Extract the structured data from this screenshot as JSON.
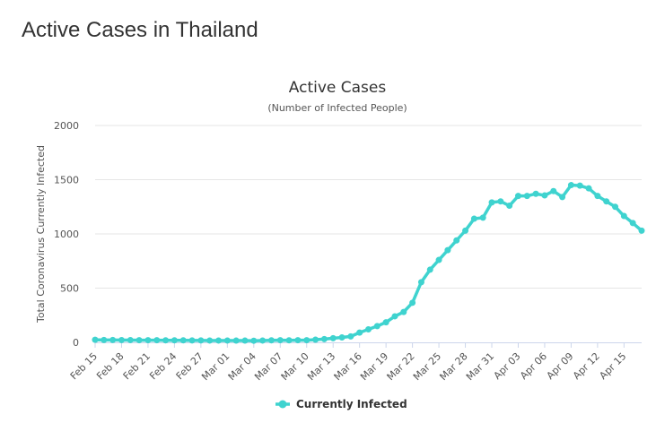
{
  "page": {
    "heading": "Active Cases in Thailand"
  },
  "chart_data": {
    "type": "line",
    "title": "Active Cases",
    "subtitle": "(Number of Infected People)",
    "ylabel": "Total Coronavirus Currently Infected",
    "xlabel": "",
    "ylim": [
      0,
      2000
    ],
    "yticks": [
      0,
      500,
      1000,
      1500,
      2000
    ],
    "xtick_labels": [
      "Feb 15",
      "Feb 18",
      "Feb 21",
      "Feb 24",
      "Feb 27",
      "Mar 01",
      "Mar 04",
      "Mar 07",
      "Mar 10",
      "Mar 13",
      "Mar 16",
      "Mar 19",
      "Mar 22",
      "Mar 25",
      "Mar 28",
      "Mar 31",
      "Apr 03",
      "Apr 06",
      "Apr 09",
      "Apr 12",
      "Apr 15"
    ],
    "xtick_step": 3,
    "grid": true,
    "legend_position": "bottom-center",
    "color": "#3fd3cf",
    "series": [
      {
        "name": "Currently Infected",
        "x": [
          "Feb 15",
          "Feb 16",
          "Feb 17",
          "Feb 18",
          "Feb 19",
          "Feb 20",
          "Feb 21",
          "Feb 22",
          "Feb 23",
          "Feb 24",
          "Feb 25",
          "Feb 26",
          "Feb 27",
          "Feb 28",
          "Feb 29",
          "Mar 01",
          "Mar 02",
          "Mar 03",
          "Mar 04",
          "Mar 05",
          "Mar 06",
          "Mar 07",
          "Mar 08",
          "Mar 09",
          "Mar 10",
          "Mar 11",
          "Mar 12",
          "Mar 13",
          "Mar 14",
          "Mar 15",
          "Mar 16",
          "Mar 17",
          "Mar 18",
          "Mar 19",
          "Mar 20",
          "Mar 21",
          "Mar 22",
          "Mar 23",
          "Mar 24",
          "Mar 25",
          "Mar 26",
          "Mar 27",
          "Mar 28",
          "Mar 29",
          "Mar 30",
          "Mar 31",
          "Apr 01",
          "Apr 02",
          "Apr 03",
          "Apr 04",
          "Apr 05",
          "Apr 06",
          "Apr 07",
          "Apr 08",
          "Apr 09",
          "Apr 10",
          "Apr 11",
          "Apr 12",
          "Apr 13",
          "Apr 14",
          "Apr 15",
          "Apr 16",
          "Apr 17"
        ],
        "values": [
          24,
          22,
          22,
          21,
          21,
          20,
          20,
          20,
          19,
          19,
          19,
          18,
          18,
          17,
          17,
          17,
          16,
          16,
          15,
          17,
          19,
          20,
          19,
          20,
          20,
          25,
          30,
          38,
          45,
          55,
          90,
          120,
          150,
          185,
          240,
          280,
          365,
          555,
          670,
          760,
          850,
          940,
          1030,
          1140,
          1150,
          1290,
          1300,
          1260,
          1350,
          1350,
          1370,
          1355,
          1395,
          1340,
          1450,
          1445,
          1420,
          1350,
          1300,
          1250,
          1165,
          1100,
          1030
        ]
      }
    ]
  }
}
